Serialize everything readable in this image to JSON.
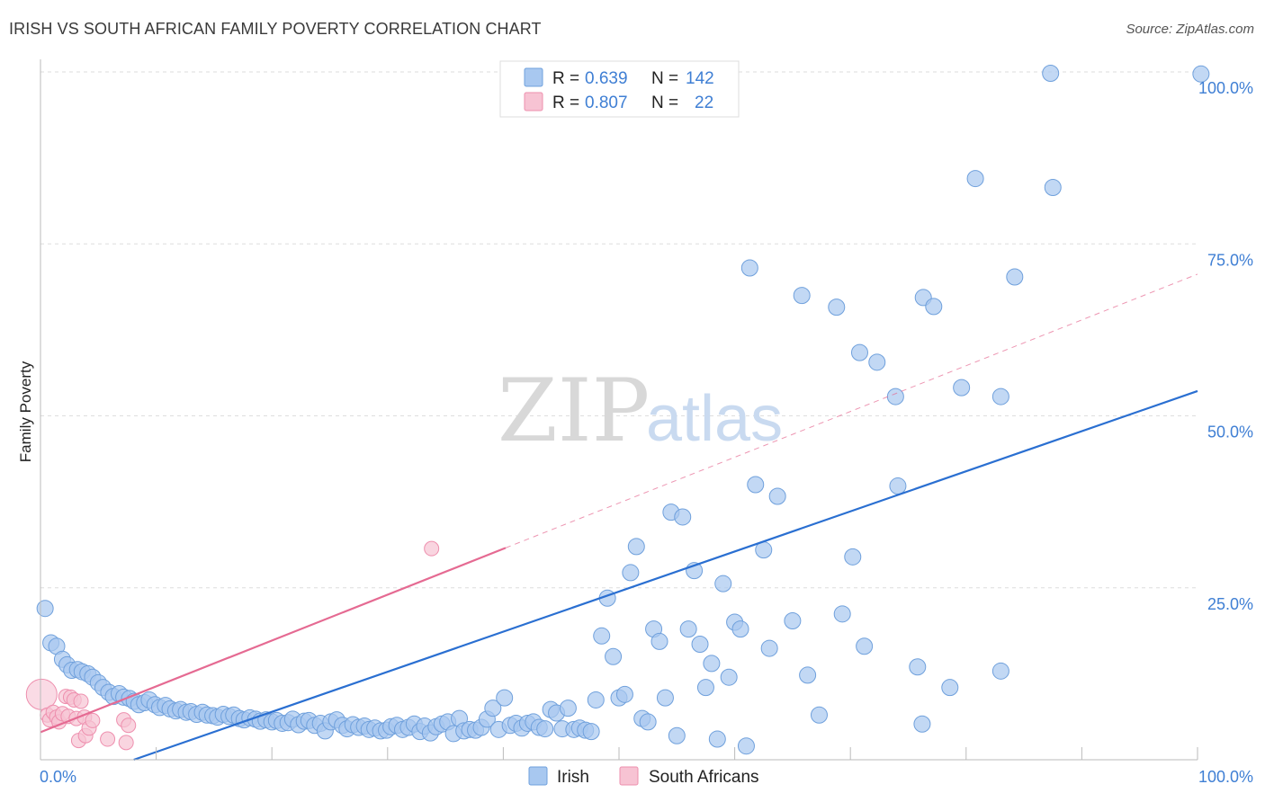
{
  "title": "IRISH VS SOUTH AFRICAN FAMILY POVERTY CORRELATION CHART",
  "source": "Source: ZipAtlas.com",
  "watermark": {
    "zip": "ZIP",
    "atlas": "atlas"
  },
  "chart_data": {
    "type": "scatter",
    "ylabel": "Family Poverty",
    "xlim": [
      0,
      100
    ],
    "ylim": [
      0,
      100
    ],
    "x_tick_labels": [
      {
        "value": 0,
        "label": "0.0%"
      },
      {
        "value": 100,
        "label": "100.0%"
      }
    ],
    "y_tick_labels": [
      {
        "value": 25,
        "label": "25.0%"
      },
      {
        "value": 50,
        "label": "50.0%"
      },
      {
        "value": 75,
        "label": "75.0%"
      },
      {
        "value": 100,
        "label": "100.0%"
      }
    ],
    "grid": true,
    "legend_position": "top-center",
    "series": [
      {
        "name": "Irish",
        "color": "#a8c8f0",
        "edge_color": "#6fa0dc",
        "line_color": "#2a6fd1",
        "R": "0.639",
        "N": "142",
        "trend": {
          "x": [
            0,
            100
          ],
          "y": [
            -4.7,
            53.6
          ]
        },
        "points": [
          [
            0.4,
            22
          ],
          [
            0.9,
            17
          ],
          [
            1.4,
            16.5
          ],
          [
            1.9,
            14.6
          ],
          [
            2.3,
            13.8
          ],
          [
            2.7,
            13
          ],
          [
            3.2,
            13.1
          ],
          [
            3.6,
            12.8
          ],
          [
            4.1,
            12.5
          ],
          [
            4.5,
            12
          ],
          [
            5.0,
            11.2
          ],
          [
            5.4,
            10.5
          ],
          [
            5.9,
            9.8
          ],
          [
            6.3,
            9.2
          ],
          [
            6.8,
            9.6
          ],
          [
            7.2,
            9.1
          ],
          [
            7.7,
            8.9
          ],
          [
            8.1,
            8.5
          ],
          [
            8.5,
            8.0
          ],
          [
            9.0,
            8.3
          ],
          [
            9.4,
            8.7
          ],
          [
            9.9,
            8.0
          ],
          [
            10.3,
            7.6
          ],
          [
            10.8,
            7.9
          ],
          [
            11.2,
            7.4
          ],
          [
            11.7,
            7.1
          ],
          [
            12.1,
            7.3
          ],
          [
            12.6,
            6.9
          ],
          [
            13.0,
            7.0
          ],
          [
            13.5,
            6.6
          ],
          [
            14.0,
            6.9
          ],
          [
            14.4,
            6.5
          ],
          [
            14.9,
            6.4
          ],
          [
            15.3,
            6.2
          ],
          [
            15.8,
            6.6
          ],
          [
            16.3,
            6.3
          ],
          [
            16.7,
            6.5
          ],
          [
            17.2,
            6.0
          ],
          [
            17.6,
            5.8
          ],
          [
            18.1,
            6.1
          ],
          [
            18.6,
            5.9
          ],
          [
            19.0,
            5.6
          ],
          [
            19.5,
            5.8
          ],
          [
            20.0,
            5.5
          ],
          [
            20.4,
            5.7
          ],
          [
            20.9,
            5.3
          ],
          [
            21.4,
            5.4
          ],
          [
            21.8,
            5.9
          ],
          [
            22.3,
            5.1
          ],
          [
            22.8,
            5.6
          ],
          [
            23.2,
            5.7
          ],
          [
            23.7,
            5.0
          ],
          [
            24.2,
            5.3
          ],
          [
            24.6,
            4.2
          ],
          [
            25.1,
            5.5
          ],
          [
            25.6,
            5.8
          ],
          [
            26.1,
            5.0
          ],
          [
            26.5,
            4.5
          ],
          [
            27.0,
            5.1
          ],
          [
            27.5,
            4.7
          ],
          [
            28.0,
            4.9
          ],
          [
            28.4,
            4.4
          ],
          [
            28.9,
            4.6
          ],
          [
            29.4,
            4.2
          ],
          [
            29.9,
            4.3
          ],
          [
            30.3,
            4.8
          ],
          [
            30.8,
            5.0
          ],
          [
            31.3,
            4.4
          ],
          [
            31.8,
            4.7
          ],
          [
            32.3,
            5.2
          ],
          [
            32.8,
            4.1
          ],
          [
            33.2,
            4.9
          ],
          [
            33.7,
            3.9
          ],
          [
            34.2,
            4.8
          ],
          [
            34.7,
            5.2
          ],
          [
            35.2,
            5.5
          ],
          [
            35.7,
            3.8
          ],
          [
            36.2,
            6.0
          ],
          [
            36.6,
            4.2
          ],
          [
            37.1,
            4.4
          ],
          [
            37.6,
            4.3
          ],
          [
            38.1,
            4.7
          ],
          [
            38.6,
            5.9
          ],
          [
            39.1,
            7.5
          ],
          [
            39.6,
            4.4
          ],
          [
            40.1,
            9.0
          ],
          [
            40.6,
            5.0
          ],
          [
            41.1,
            5.3
          ],
          [
            41.6,
            4.6
          ],
          [
            42.1,
            5.3
          ],
          [
            42.6,
            5.5
          ],
          [
            43.1,
            4.7
          ],
          [
            43.6,
            4.5
          ],
          [
            44.1,
            7.3
          ],
          [
            44.6,
            6.8
          ],
          [
            45.1,
            4.5
          ],
          [
            45.6,
            7.5
          ],
          [
            46.1,
            4.4
          ],
          [
            46.6,
            4.6
          ],
          [
            47.1,
            4.3
          ],
          [
            47.6,
            4.1
          ],
          [
            48.0,
            8.7
          ],
          [
            48.5,
            18
          ],
          [
            49.0,
            23.5
          ],
          [
            49.5,
            15
          ],
          [
            50.0,
            9
          ],
          [
            50.5,
            9.5
          ],
          [
            51.0,
            27.2
          ],
          [
            51.5,
            31
          ],
          [
            52.0,
            6
          ],
          [
            52.5,
            5.5
          ],
          [
            53.0,
            19
          ],
          [
            53.5,
            17.2
          ],
          [
            54.0,
            9
          ],
          [
            54.5,
            36
          ],
          [
            55.0,
            3.5
          ],
          [
            55.5,
            35.3
          ],
          [
            56.0,
            19
          ],
          [
            56.5,
            27.5
          ],
          [
            57.0,
            16.8
          ],
          [
            57.5,
            10.5
          ],
          [
            58.0,
            14
          ],
          [
            58.5,
            3.0
          ],
          [
            59.0,
            25.6
          ],
          [
            59.5,
            12
          ],
          [
            60.0,
            20
          ],
          [
            60.5,
            19
          ],
          [
            61.0,
            2.0
          ],
          [
            61.3,
            71.5
          ],
          [
            61.8,
            40
          ],
          [
            62.5,
            30.5
          ],
          [
            63.0,
            16.2
          ],
          [
            63.7,
            38.3
          ],
          [
            65.0,
            20.2
          ],
          [
            65.8,
            67.5
          ],
          [
            66.3,
            12.3
          ],
          [
            67.3,
            6.5
          ],
          [
            68.8,
            65.8
          ],
          [
            69.3,
            21.2
          ],
          [
            70.2,
            29.5
          ],
          [
            70.8,
            59.2
          ],
          [
            71.2,
            16.5
          ],
          [
            72.3,
            57.8
          ],
          [
            73.9,
            52.8
          ],
          [
            74.1,
            39.8
          ],
          [
            75.8,
            13.5
          ],
          [
            76.2,
            5.2
          ],
          [
            76.3,
            67.2
          ],
          [
            77.2,
            65.9
          ],
          [
            78.6,
            10.5
          ],
          [
            79.6,
            54.1
          ],
          [
            80.8,
            84.5
          ],
          [
            83.0,
            12.9
          ],
          [
            83.0,
            52.8
          ],
          [
            84.2,
            70.2
          ],
          [
            87.3,
            99.8
          ],
          [
            87.5,
            83.2
          ],
          [
            100.3,
            99.7
          ]
        ]
      },
      {
        "name": "South Africans",
        "color": "#f7c3d3",
        "edge_color": "#ee8fae",
        "line_color": "#e56a92",
        "R": "0.807",
        "N": "22",
        "trend": {
          "x": [
            0,
            40.2
          ],
          "y": [
            4.0,
            30.8
          ]
        },
        "trend_dashed": {
          "x": [
            40.2,
            100
          ],
          "y": [
            30.8,
            70.6
          ]
        },
        "points": [
          [
            0.1,
            9.5
          ],
          [
            0.6,
            6.5
          ],
          [
            0.8,
            5.8
          ],
          [
            1.1,
            6.9
          ],
          [
            1.4,
            6.2
          ],
          [
            1.6,
            5.5
          ],
          [
            1.9,
            6.7
          ],
          [
            2.2,
            9.2
          ],
          [
            2.4,
            6.3
          ],
          [
            2.6,
            9.1
          ],
          [
            2.9,
            8.7
          ],
          [
            3.1,
            6.0
          ],
          [
            3.3,
            2.8
          ],
          [
            3.5,
            8.5
          ],
          [
            3.8,
            6.2
          ],
          [
            3.9,
            3.5
          ],
          [
            4.2,
            4.6
          ],
          [
            4.5,
            5.7
          ],
          [
            5.8,
            3.0
          ],
          [
            7.2,
            5.8
          ],
          [
            7.4,
            2.5
          ],
          [
            7.6,
            5.0
          ],
          [
            33.8,
            30.7
          ]
        ]
      }
    ]
  }
}
